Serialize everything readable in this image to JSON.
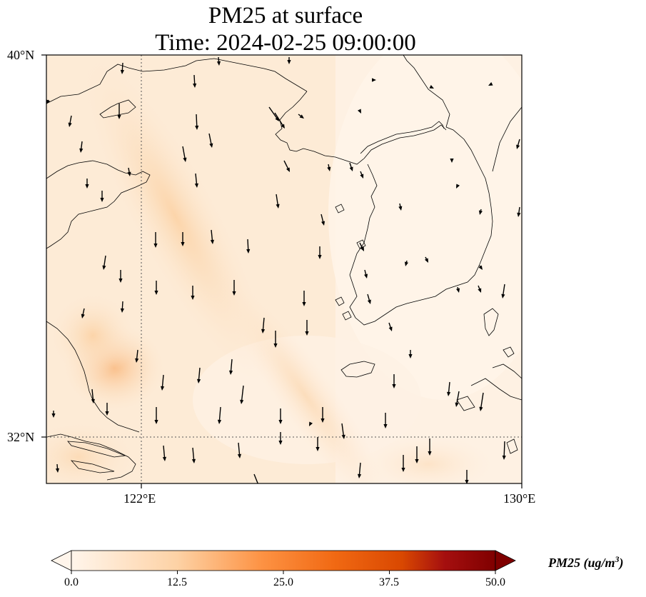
{
  "title": {
    "line1": "PM25 at surface",
    "line2": "Time: 2024-02-25 09:00:00"
  },
  "map": {
    "lat_labels": [
      "40°N",
      "32°N"
    ],
    "lon_labels": [
      "122°E",
      "130°E"
    ],
    "gridline_style": "dotted",
    "features": [
      "coastlines",
      "wind-vectors",
      "pm25-field"
    ]
  },
  "colorbar": {
    "ticks": [
      "0.0",
      "12.5",
      "25.0",
      "37.5",
      "50.0"
    ],
    "label_main": "PM25 (ug/m",
    "label_sup": "3",
    "label_close": ")",
    "colormap": "Oranges",
    "color_min": "#fff5eb",
    "color_mid": "#fd9243",
    "color_max": "#7f0000",
    "extend": "both"
  },
  "icons": {
    "wind_vector": "wind-arrow-icon"
  }
}
